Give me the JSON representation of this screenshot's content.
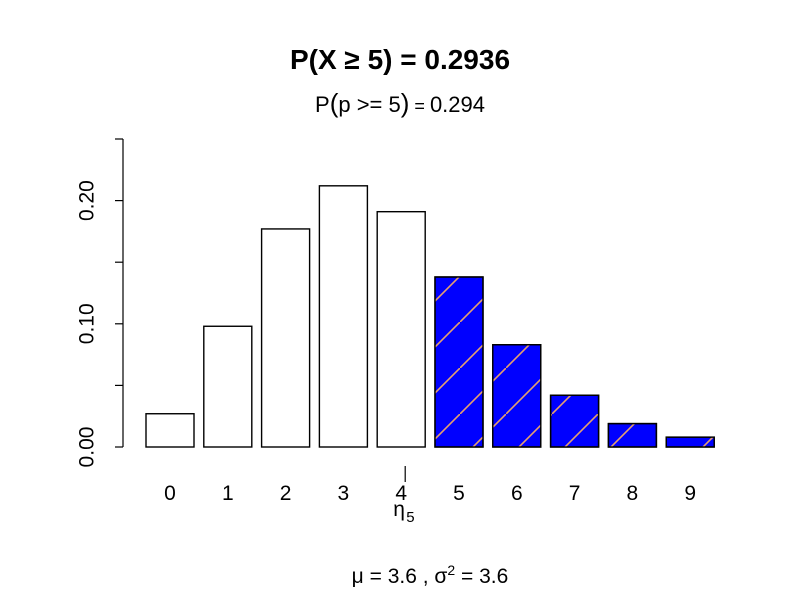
{
  "chart_data": {
    "type": "bar",
    "title": "P(X ≥ 5) = 0.2936",
    "subtitle": {
      "prefix": "P",
      "open_paren": "(",
      "expr": "p >= 5",
      "close_paren": ")",
      "equals": " = ",
      "value": "0.294"
    },
    "categories": [
      "0",
      "1",
      "2",
      "3",
      "4",
      "5",
      "6",
      "7",
      "8",
      "9"
    ],
    "values": [
      0.027,
      0.098,
      0.177,
      0.212,
      0.191,
      0.138,
      0.083,
      0.042,
      0.019,
      0.008
    ],
    "highlight_from_index": 5,
    "ylim": [
      0,
      0.25
    ],
    "yticks": [
      0.0,
      0.05,
      0.1,
      0.15,
      0.2,
      0.25
    ],
    "ytick_labels": [
      "0.00",
      "0.10",
      "0.20"
    ],
    "ytick_labeled_values": [
      0.0,
      0.1,
      0.2
    ],
    "marker": {
      "symbol": "η",
      "subscript": "5",
      "position": 4.5
    },
    "footer": {
      "mu_symbol": "μ",
      "mu_text": " = 3.6 ,  ",
      "sigma_symbol": "σ",
      "sigma_sup": "2",
      "sigma_text": " = 3.6"
    },
    "colors": {
      "highlight_fill": "#0000ff",
      "hatch": "#e6a06e",
      "plain_fill": "#ffffff",
      "stroke": "#000000"
    },
    "grid": false,
    "legend": "none"
  }
}
